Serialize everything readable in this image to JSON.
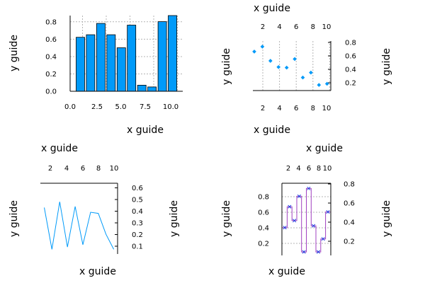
{
  "colors": {
    "series": "#009af9",
    "step": "#a040c0",
    "marker": "#2040e0",
    "grid": "#c8c8c8",
    "axis": "#000000"
  },
  "chart_data": [
    {
      "type": "bar",
      "xlabel": "x guide",
      "ylabel": "y guide",
      "xlim": [
        0,
        11
      ],
      "ylim": [
        0,
        0.87
      ],
      "x": [
        1,
        2,
        3,
        4,
        5,
        6,
        7,
        8,
        9,
        10
      ],
      "values": [
        0.62,
        0.65,
        0.78,
        0.65,
        0.5,
        0.76,
        0.07,
        0.05,
        0.8,
        0.87
      ],
      "xticks": [
        0.0,
        2.5,
        5.0,
        7.5,
        10.0
      ],
      "xtick_labels": [
        "0.0",
        "2.5",
        "5.0",
        "7.5",
        "10.0"
      ],
      "yticks": [
        0.0,
        0.2,
        0.4,
        0.6,
        0.8
      ],
      "ytick_labels": [
        "0.0",
        "0.2",
        "0.4",
        "0.6",
        "0.8"
      ],
      "xaxis_position": "bottom",
      "yaxis_position": "left",
      "grid": true
    },
    {
      "type": "scatter",
      "xlabel": "x guide",
      "ylabel": "y guide",
      "top_xlabel": "x guide",
      "right_ylabel": "y guide",
      "xlim": [
        1,
        10.2
      ],
      "ylim": [
        0.02,
        0.82
      ],
      "x": [
        1,
        2,
        3,
        4,
        5,
        6,
        7,
        8,
        9,
        10
      ],
      "y": [
        0.65,
        0.73,
        0.5,
        0.4,
        0.39,
        0.53,
        0.23,
        0.31,
        0.11,
        0.13
      ],
      "xticks": [
        2,
        4,
        6,
        8,
        10
      ],
      "xtick_labels": [
        "2",
        "4",
        "6",
        "8",
        "10"
      ],
      "yticks": [
        0.2,
        0.4,
        0.6,
        0.8
      ],
      "ytick_labels": [
        "0.2",
        "0.4",
        "0.6",
        "0.8"
      ],
      "xaxis_position": "bottom and top",
      "yaxis_position": "right",
      "grid": true
    },
    {
      "type": "line",
      "xlabel": "x guide",
      "ylabel": "y guide",
      "top_xlabel": "x guide",
      "right_ylabel": "y guide",
      "xlim": [
        0.5,
        10.5
      ],
      "ylim": [
        0.02,
        0.63
      ],
      "x": [
        1,
        2,
        3,
        4,
        5,
        6,
        7,
        8,
        9,
        10
      ],
      "y": [
        0.42,
        0.06,
        0.47,
        0.08,
        0.43,
        0.1,
        0.38,
        0.37,
        0.19,
        0.06
      ],
      "xticks": [
        2,
        4,
        6,
        8,
        10
      ],
      "xtick_labels": [
        "2",
        "4",
        "6",
        "8",
        "10"
      ],
      "yticks": [
        0.1,
        0.2,
        0.3,
        0.4,
        0.5,
        0.6
      ],
      "ytick_labels": [
        "0.1",
        "0.2",
        "0.3",
        "0.4",
        "0.5",
        "0.6"
      ],
      "xaxis_position": "top",
      "yaxis_position": "right",
      "grid": false
    },
    {
      "type": "line",
      "style": "step with markers",
      "xlabel": "x guide",
      "ylabel": "y guide",
      "right_ylabel": "y guide",
      "xlim": [
        0.4,
        10.6
      ],
      "ylim": [
        0.02,
        0.85
      ],
      "x": [
        1,
        2,
        3,
        4,
        5,
        6,
        7,
        8,
        9,
        10
      ],
      "y": [
        0.34,
        0.58,
        0.42,
        0.7,
        0.06,
        0.79,
        0.36,
        0.06,
        0.21,
        0.52
      ],
      "xticks": [
        2,
        4,
        6,
        8,
        10
      ],
      "xtick_labels": [
        "2",
        "4",
        "6",
        "8",
        "10"
      ],
      "yticks": [
        0.2,
        0.4,
        0.6,
        0.8
      ],
      "ytick_labels": [
        "0.2",
        "0.4",
        "0.6",
        "0.8"
      ],
      "xaxis_position": "top",
      "yaxis_position": "left and right",
      "grid": true
    }
  ]
}
